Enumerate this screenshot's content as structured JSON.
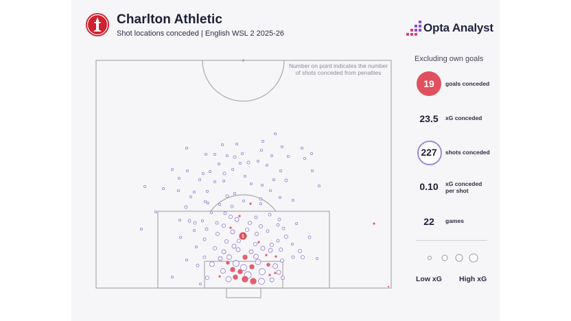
{
  "header": {
    "title": "Charlton Athletic",
    "subtitle": "Shot locations conceded | English WSL 2 2025-26",
    "brand": "Opta Analyst"
  },
  "colors": {
    "goal": "#e0505e",
    "shot": "#9f86d6",
    "pitch_line": "#aaaaaa",
    "text": "#1d1d36"
  },
  "icons": {
    "club_crest": "charlton-crest-icon",
    "brand_mark": "opta-dots-icon"
  },
  "note": "Number on point indicates the number of shots conceded from penalties",
  "stats": {
    "heading": "Excluding own goals",
    "items": [
      {
        "value": "19",
        "label": "goals conceded"
      },
      {
        "value": "23.5",
        "label": "xG conceded"
      },
      {
        "value": "227",
        "label": "shots conceded"
      },
      {
        "value": "0.10",
        "label": "xG conceded per shot"
      },
      {
        "value": "22",
        "label": "games"
      }
    ]
  },
  "legend": {
    "low": "Low xG",
    "high": "High xG"
  },
  "chart_data": {
    "type": "scatter",
    "pitch": "half-pitch, opposition goal at bottom",
    "penalty_annotation": {
      "value": "1",
      "x": 354,
      "y": 344
    },
    "goals": [
      [
        365,
        297,
        2
      ],
      [
        349,
        315,
        2
      ],
      [
        336,
        332,
        2
      ],
      [
        377,
        353,
        2
      ],
      [
        357,
        375,
        4
      ],
      [
        388,
        372,
        2
      ],
      [
        402,
        374,
        2
      ],
      [
        332,
        383,
        3
      ],
      [
        339,
        393,
        4
      ],
      [
        350,
        396,
        4
      ],
      [
        367,
        389,
        4
      ],
      [
        391,
        386,
        3
      ],
      [
        357,
        407,
        5
      ],
      [
        369,
        410,
        5
      ],
      [
        343,
        404,
        4
      ],
      [
        320,
        403,
        2
      ],
      [
        393,
        401,
        2
      ],
      [
        401,
        398,
        2
      ],
      [
        545,
        326,
        2
      ],
      [
        566,
        418,
        1.5
      ]
    ],
    "shots": [
      [
        401,
        195,
        1.6
      ],
      [
        324,
        211,
        1.6
      ],
      [
        345,
        210,
        1.6
      ],
      [
        383,
        206,
        1.6
      ],
      [
        272,
        216,
        1.6
      ],
      [
        411,
        214,
        1.6
      ],
      [
        440,
        216,
        1.6
      ],
      [
        381,
        219,
        1.6
      ],
      [
        300,
        225,
        1.6
      ],
      [
        313,
        225,
        1.6
      ],
      [
        331,
        227,
        1.6
      ],
      [
        342,
        229,
        2.0
      ],
      [
        353,
        224,
        1.6
      ],
      [
        396,
        227,
        1.6
      ],
      [
        454,
        224,
        1.6
      ],
      [
        420,
        228,
        1.6
      ],
      [
        444,
        231,
        1.6
      ],
      [
        319,
        239,
        1.6
      ],
      [
        350,
        238,
        1.6
      ],
      [
        362,
        237,
        2.0
      ],
      [
        376,
        235,
        1.6
      ],
      [
        389,
        241,
        1.6
      ],
      [
        251,
        247,
        1.6
      ],
      [
        273,
        249,
        1.6
      ],
      [
        296,
        253,
        1.6
      ],
      [
        306,
        250,
        1.6
      ],
      [
        327,
        253,
        2.0
      ],
      [
        339,
        247,
        1.6
      ],
      [
        357,
        257,
        1.6
      ],
      [
        409,
        249,
        1.6
      ],
      [
        455,
        249,
        1.6
      ],
      [
        261,
        260,
        1.6
      ],
      [
        291,
        262,
        1.6
      ],
      [
        313,
        265,
        1.6
      ],
      [
        326,
        264,
        1.6
      ],
      [
        366,
        268,
        1.6
      ],
      [
        382,
        270,
        1.6
      ],
      [
        399,
        262,
        1.6
      ],
      [
        417,
        263,
        2.0
      ],
      [
        211,
        272,
        1.6
      ],
      [
        238,
        275,
        1.6
      ],
      [
        260,
        278,
        1.6
      ],
      [
        283,
        280,
        1.6
      ],
      [
        302,
        279,
        1.6
      ],
      [
        342,
        282,
        1.6
      ],
      [
        394,
        278,
        1.6
      ],
      [
        465,
        271,
        1.6
      ],
      [
        278,
        287,
        1.6
      ],
      [
        299,
        294,
        1.6
      ],
      [
        331,
        286,
        2.0
      ],
      [
        355,
        293,
        1.6
      ],
      [
        380,
        290,
        2.0
      ],
      [
        408,
        288,
        1.6
      ],
      [
        427,
        292,
        1.6
      ],
      [
        271,
        302,
        2.0
      ],
      [
        320,
        298,
        1.6
      ],
      [
        338,
        301,
        2.0
      ],
      [
        380,
        297,
        1.6
      ],
      [
        303,
        296,
        1.6
      ],
      [
        227,
        309,
        1.6
      ],
      [
        308,
        310,
        1.6
      ],
      [
        328,
        311,
        2.0
      ],
      [
        336,
        316,
        2.6
      ],
      [
        345,
        320,
        3.0
      ],
      [
        373,
        317,
        2.0
      ],
      [
        393,
        313,
        2.0
      ],
      [
        407,
        320,
        2.0
      ],
      [
        262,
        321,
        1.6
      ],
      [
        276,
        322,
        2.0
      ],
      [
        284,
        325,
        2.0
      ],
      [
        295,
        322,
        1.6
      ],
      [
        316,
        325,
        2.0
      ],
      [
        326,
        329,
        2.6
      ],
      [
        364,
        325,
        2.6
      ],
      [
        380,
        330,
        2.6
      ],
      [
        405,
        328,
        2.0
      ],
      [
        413,
        333,
        2.0
      ],
      [
        432,
        326,
        1.6
      ],
      [
        206,
        334,
        1.6
      ],
      [
        283,
        336,
        1.6
      ],
      [
        301,
        334,
        2.0
      ],
      [
        317,
        341,
        2.6
      ],
      [
        339,
        338,
        3.0
      ],
      [
        360,
        335,
        2.6
      ],
      [
        374,
        341,
        2.6
      ],
      [
        390,
        337,
        2.0
      ],
      [
        417,
        345,
        2.6
      ],
      [
        451,
        346,
        2.0
      ],
      [
        263,
        346,
        1.6
      ],
      [
        298,
        349,
        2.0
      ],
      [
        330,
        352,
        2.6
      ],
      [
        341,
        359,
        3.0
      ],
      [
        348,
        351,
        2.6
      ],
      [
        372,
        356,
        2.6
      ],
      [
        383,
        362,
        3.0
      ],
      [
        396,
        357,
        2.6
      ],
      [
        405,
        351,
        2.0
      ],
      [
        426,
        356,
        1.6
      ],
      [
        437,
        366,
        2.6
      ],
      [
        441,
        375,
        2.6
      ],
      [
        286,
        360,
        1.6
      ],
      [
        313,
        362,
        2.6
      ],
      [
        326,
        367,
        3.0
      ],
      [
        334,
        375,
        3.5
      ],
      [
        347,
        364,
        3.0
      ],
      [
        366,
        367,
        3.0
      ],
      [
        373,
        374,
        3.5
      ],
      [
        394,
        365,
        3.0
      ],
      [
        409,
        364,
        2.6
      ],
      [
        427,
        375,
        2.0
      ],
      [
        462,
        377,
        1.6
      ],
      [
        272,
        379,
        1.6
      ],
      [
        298,
        375,
        2.0
      ],
      [
        309,
        385,
        3.5
      ],
      [
        321,
        377,
        3.0
      ],
      [
        344,
        384,
        4.5
      ],
      [
        376,
        382,
        4.0
      ],
      [
        401,
        388,
        3.5
      ],
      [
        411,
        380,
        2.6
      ],
      [
        288,
        387,
        2.0
      ],
      [
        325,
        395,
        3.5
      ],
      [
        355,
        390,
        4.5
      ],
      [
        382,
        396,
        4.5
      ],
      [
        406,
        397,
        3.0
      ],
      [
        251,
        404,
        1.6
      ],
      [
        302,
        405,
        2.6
      ],
      [
        333,
        407,
        4.0
      ],
      [
        381,
        410,
        4.5
      ],
      [
        361,
        401,
        5.0
      ],
      [
        396,
        408,
        3.0
      ],
      [
        292,
        414,
        1.6
      ],
      [
        412,
        405,
        2.6
      ]
    ]
  }
}
